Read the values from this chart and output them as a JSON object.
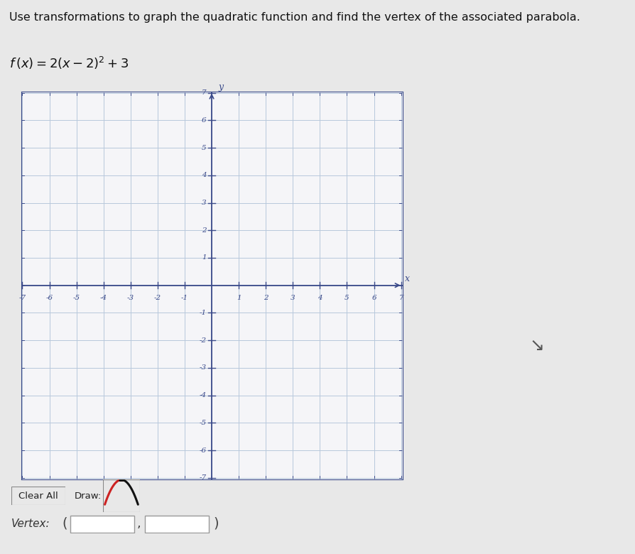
{
  "title_text": "Use transformations to graph the quadratic function and find the vertex of the associated parabola.",
  "x_min": -7,
  "x_max": 7,
  "y_min": -7,
  "y_max": 7,
  "x_ticks": [
    -7,
    -6,
    -5,
    -4,
    -3,
    -2,
    -1,
    1,
    2,
    3,
    4,
    5,
    6,
    7
  ],
  "y_ticks": [
    -7,
    -6,
    -5,
    -4,
    -3,
    -2,
    -1,
    1,
    2,
    3,
    4,
    5,
    6,
    7
  ],
  "grid_color": "#b8c8dc",
  "axis_color": "#3a4a8a",
  "tick_color": "#3a4a8a",
  "background_color": "#e8e8e8",
  "plot_bg_color": "#f5f5f8",
  "title_fontsize": 11.5,
  "formula_fontsize": 13,
  "tick_fontsize": 7.5,
  "axis_label_fontsize": 9,
  "vertex_label": "Vertex:",
  "clear_all_label": "Clear All",
  "draw_label": "Draw:"
}
